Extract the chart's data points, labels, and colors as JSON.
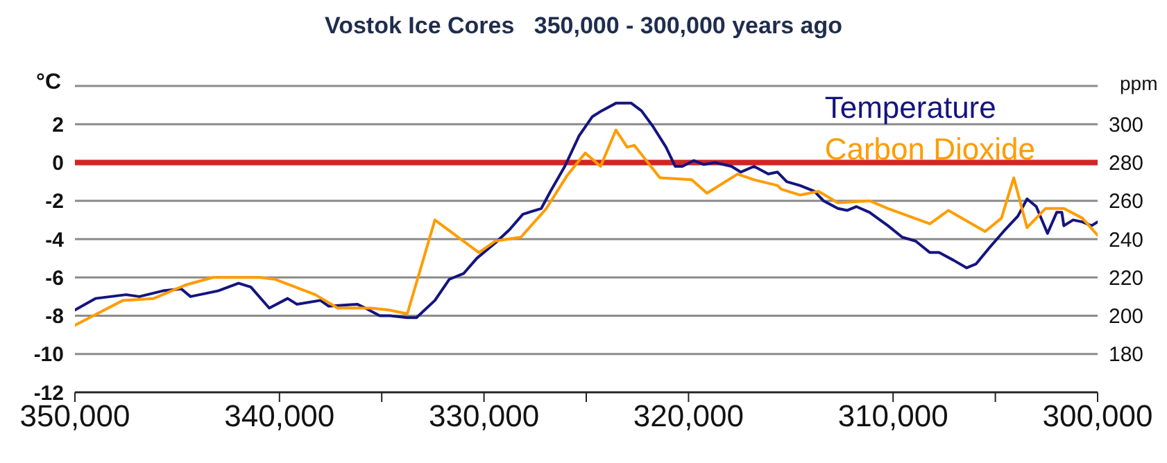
{
  "chart_data": {
    "type": "line",
    "title": "Vostok Ice Cores   350,000 - 300,000 years ago",
    "ylabel": "°C",
    "y2label": "ppm",
    "xlim": [
      350000,
      300000
    ],
    "xticks": [
      {
        "value": 350000,
        "label": "350,000"
      },
      {
        "value": 340000,
        "label": "340,000"
      },
      {
        "value": 335000,
        "label": null
      },
      {
        "value": 330000,
        "label": "330,000"
      },
      {
        "value": 325000,
        "label": null
      },
      {
        "value": 320000,
        "label": "320,000"
      },
      {
        "value": 310000,
        "label": "310,000"
      },
      {
        "value": 305000,
        "label": null
      },
      {
        "value": 300000,
        "label": "300,000"
      }
    ],
    "ylim": [
      -12,
      4
    ],
    "yticks": [
      -12,
      -10,
      -8,
      -6,
      -4,
      -2,
      0,
      2,
      {
        "value": 4,
        "label": null
      }
    ],
    "y2lim": [
      160,
      320
    ],
    "y2ticks": [
      180,
      200,
      220,
      240,
      260,
      280,
      300
    ],
    "grid": "y",
    "legend": "top right",
    "ref_lines": [
      {
        "axis": "y",
        "value": 0,
        "color": "#d42424"
      }
    ],
    "series": [
      {
        "name": "Temperature",
        "color": "#141480",
        "x": [
          350000,
          349000,
          347500,
          346850,
          345700,
          344800,
          344350,
          343000,
          342000,
          341400,
          340500,
          339600,
          339150,
          338000,
          337600,
          336200,
          335800,
          335100,
          334600,
          333750,
          333300,
          332400,
          331700,
          331000,
          330350,
          329450,
          328750,
          328100,
          327200,
          326750,
          326050,
          325350,
          324700,
          324250,
          323550,
          322800,
          322300,
          321750,
          321100,
          320650,
          320300,
          319750,
          319250,
          318700,
          317900,
          317450,
          316800,
          316100,
          315650,
          315200,
          314550,
          313850,
          313400,
          312700,
          312250,
          311800,
          311150,
          310250,
          309550,
          308900,
          308200,
          307750,
          307050,
          306400,
          305950,
          305250,
          304600,
          303900,
          303450,
          303000,
          302450,
          302000,
          301750,
          301650,
          301200,
          300750,
          300300,
          300000
        ],
        "values": [
          -7.7,
          -7.1,
          -6.9,
          -7.0,
          -6.7,
          -6.6,
          -7.0,
          -6.7,
          -6.3,
          -6.5,
          -7.6,
          -7.1,
          -7.4,
          -7.2,
          -7.5,
          -7.4,
          -7.6,
          -8.0,
          -8.0,
          -8.1,
          -8.1,
          -7.2,
          -6.1,
          -5.8,
          -5.0,
          -4.2,
          -3.5,
          -2.7,
          -2.4,
          -1.5,
          -0.2,
          1.4,
          2.4,
          2.7,
          3.1,
          3.1,
          2.7,
          1.9,
          0.8,
          -0.2,
          -0.2,
          0.1,
          -0.1,
          0.0,
          -0.2,
          -0.5,
          -0.2,
          -0.6,
          -0.5,
          -1.0,
          -1.2,
          -1.5,
          -2.0,
          -2.4,
          -2.5,
          -2.3,
          -2.6,
          -3.3,
          -3.9,
          -4.1,
          -4.7,
          -4.7,
          -5.1,
          -5.5,
          -5.3,
          -4.4,
          -3.6,
          -2.8,
          -1.9,
          -2.3,
          -3.7,
          -2.6,
          -2.6,
          -3.3,
          -3.0,
          -3.1,
          -3.3,
          -3.1
        ]
      },
      {
        "name": "Carbon Dioxide",
        "color": "#ff9c00",
        "axis": "y2",
        "x": [
          350000,
          349100,
          347650,
          346150,
          344600,
          343250,
          340950,
          340200,
          338250,
          337150,
          335550,
          334650,
          333750,
          332400,
          330250,
          329450,
          328200,
          326950,
          325950,
          325050,
          324300,
          323550,
          323000,
          322650,
          321400,
          319850,
          319100,
          317600,
          316800,
          315650,
          315450,
          314550,
          313650,
          312700,
          311150,
          310250,
          308200,
          307300,
          305500,
          304700,
          304100,
          303450,
          302550,
          301650,
          300750,
          300000
        ],
        "values": [
          195,
          200,
          208,
          209,
          216,
          220,
          220,
          219,
          211,
          204,
          204,
          203,
          201,
          250,
          233,
          239,
          241,
          256,
          273,
          285,
          278,
          297,
          288,
          289,
          272,
          271,
          264,
          274,
          271,
          268,
          266,
          263,
          265,
          259,
          260,
          256,
          248,
          255,
          244,
          251,
          272,
          246,
          256,
          256,
          251,
          242
        ]
      }
    ]
  }
}
